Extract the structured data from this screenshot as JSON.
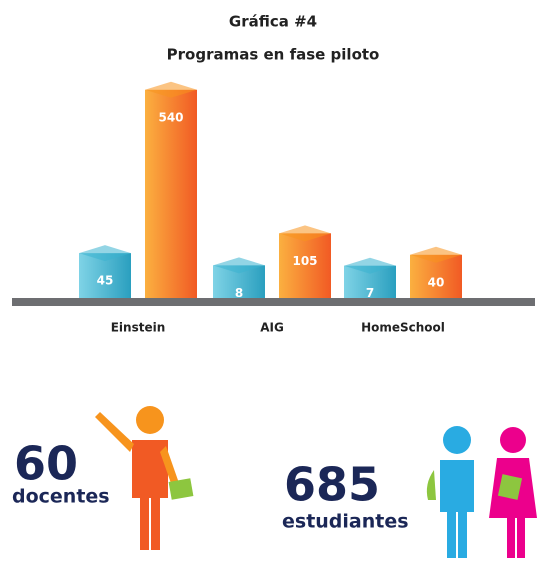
{
  "chart_data": {
    "type": "bar",
    "title": "Gráfica #4",
    "subtitle": "Programas en fase piloto",
    "categories": [
      "Einstein",
      "AIG",
      "HomeSchool"
    ],
    "series": [
      {
        "color": "#3bb3cf",
        "values": [
          45,
          8,
          7
        ]
      },
      {
        "color": "#f7941d",
        "values": [
          540,
          105,
          40
        ]
      }
    ]
  },
  "summary": [
    {
      "value": 60,
      "label": "docentes"
    },
    {
      "value": 685,
      "label": "estudiantes"
    }
  ]
}
